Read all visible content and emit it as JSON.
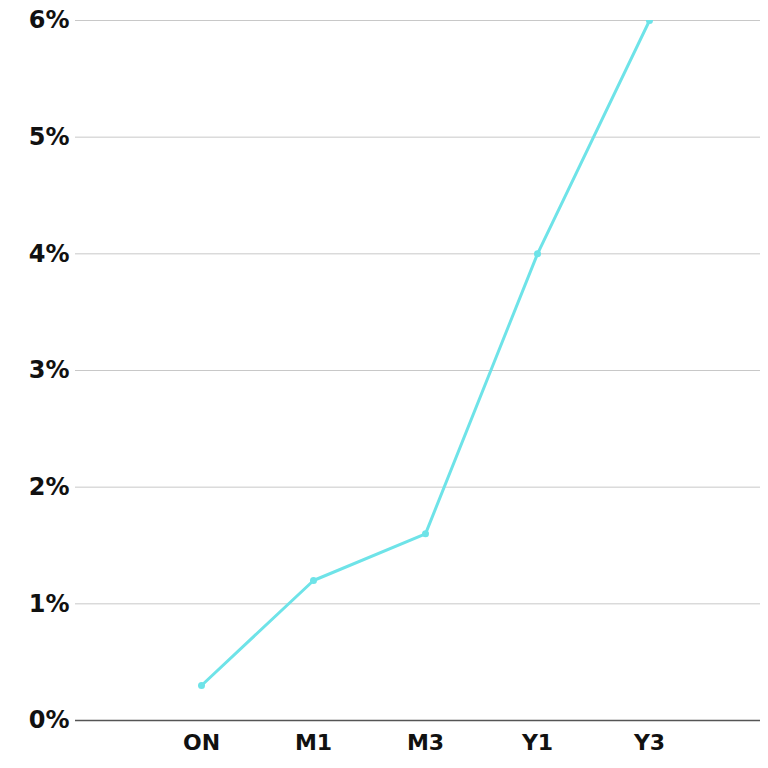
{
  "chart_data": {
    "type": "line",
    "categories": [
      "ON",
      "M1",
      "M3",
      "Y1",
      "Y3"
    ],
    "values": [
      0.3,
      1.2,
      1.6,
      4.0,
      6.0
    ],
    "color": "#6ee3e8",
    "marker": "circle",
    "ylim": [
      0,
      6
    ],
    "yticks": [
      {
        "value": 0,
        "label": "0%"
      },
      {
        "value": 1,
        "label": "1%"
      },
      {
        "value": 2,
        "label": "2%"
      },
      {
        "value": 3,
        "label": "3%"
      },
      {
        "value": 4,
        "label": "4%"
      },
      {
        "value": 5,
        "label": "5%"
      },
      {
        "value": 6,
        "label": "6%"
      }
    ],
    "grid": true
  }
}
